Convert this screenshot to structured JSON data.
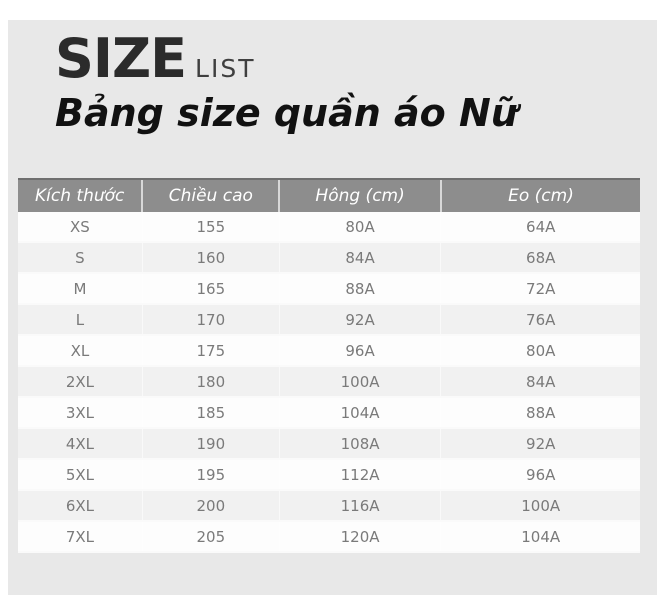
{
  "page": {
    "title_main": "SIZE",
    "title_sub": "LIST",
    "subtitle": "Bảng size quần áo Nữ"
  },
  "chart_data": {
    "type": "table",
    "title": "Bảng size quần áo Nữ",
    "columns": [
      "Kích thước",
      "Chiều cao",
      "Hông (cm)",
      "Eo (cm)"
    ],
    "rows": [
      [
        "XS",
        "155",
        "80A",
        "64A"
      ],
      [
        "S",
        "160",
        "84A",
        "68A"
      ],
      [
        "M",
        "165",
        "88A",
        "72A"
      ],
      [
        "L",
        "170",
        "92A",
        "76A"
      ],
      [
        "XL",
        "175",
        "96A",
        "80A"
      ],
      [
        "2XL",
        "180",
        "100A",
        "84A"
      ],
      [
        "3XL",
        "185",
        "104A",
        "88A"
      ],
      [
        "4XL",
        "190",
        "108A",
        "92A"
      ],
      [
        "5XL",
        "195",
        "112A",
        "96A"
      ],
      [
        "6XL",
        "200",
        "116A",
        "100A"
      ],
      [
        "7XL",
        "205",
        "120A",
        "104A"
      ]
    ]
  },
  "colors": {
    "page_bg": "#ffffff",
    "content_bg": "#e8e8e8",
    "header_bg": "#8d8d8d",
    "header_border_top": "#6f6f6f",
    "header_text": "#ffffff",
    "row_odd_bg": "#fdfdfd",
    "row_even_bg": "#f1f1f1",
    "row_text": "#7a7a7a",
    "title_color": "#2b2b2b",
    "title_list_color": "#3f3f3f",
    "subtitle_color": "#111111"
  }
}
